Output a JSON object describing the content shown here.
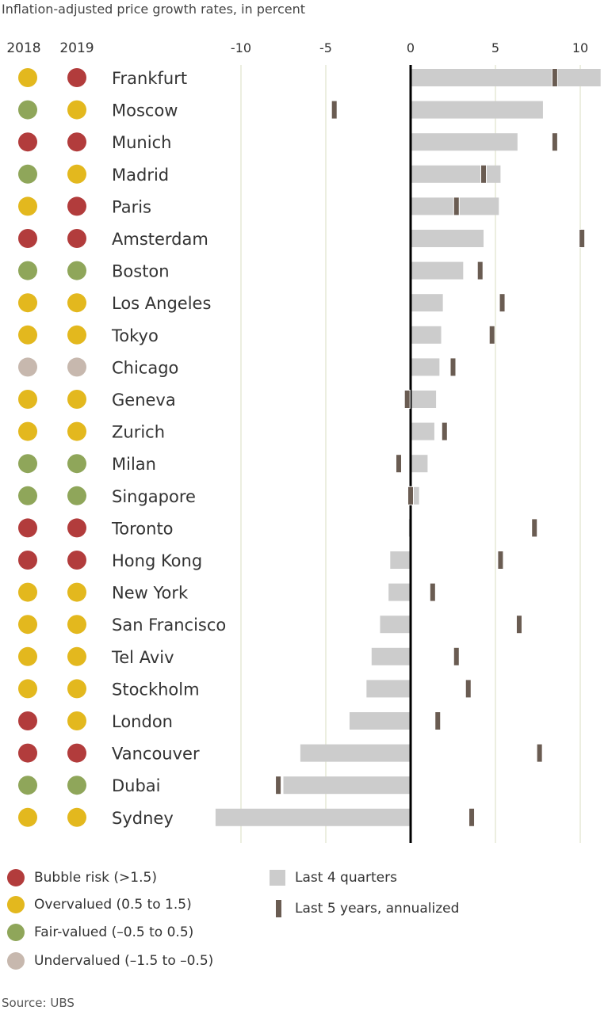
{
  "chart_data": {
    "type": "bar",
    "title": "Inflation-adjusted price growth rates, in percent",
    "year_headers": [
      "2018",
      "2019"
    ],
    "x_ticks": [
      -10,
      -5,
      0,
      5,
      10
    ],
    "xlim": [
      -12,
      11.5
    ],
    "categories": [
      "Frankfurt",
      "Moscow",
      "Munich",
      "Madrid",
      "Paris",
      "Amsterdam",
      "Boston",
      "Los Angeles",
      "Tokyo",
      "Chicago",
      "Geneva",
      "Zurich",
      "Milan",
      "Singapore",
      "Toronto",
      "Hong Kong",
      "New York",
      "San Francisco",
      "Tel Aviv",
      "Stockholm",
      "London",
      "Vancouver",
      "Dubai",
      "Sydney"
    ],
    "rating_2018": [
      "overvalued",
      "fair",
      "bubble",
      "fair",
      "overvalued",
      "bubble",
      "fair",
      "overvalued",
      "overvalued",
      "undervalued",
      "overvalued",
      "overvalued",
      "fair",
      "fair",
      "bubble",
      "bubble",
      "overvalued",
      "overvalued",
      "overvalued",
      "overvalued",
      "bubble",
      "bubble",
      "fair",
      "overvalued"
    ],
    "rating_2019": [
      "bubble",
      "overvalued",
      "bubble",
      "overvalued",
      "bubble",
      "bubble",
      "fair",
      "overvalued",
      "overvalued",
      "undervalued",
      "overvalued",
      "overvalued",
      "fair",
      "fair",
      "bubble",
      "bubble",
      "overvalued",
      "overvalued",
      "overvalued",
      "overvalued",
      "overvalued",
      "bubble",
      "fair",
      "overvalued"
    ],
    "series": [
      {
        "name": "Last 4 quarters",
        "values": [
          11.2,
          7.8,
          6.3,
          5.3,
          5.2,
          4.3,
          3.1,
          1.9,
          1.8,
          1.7,
          1.5,
          1.4,
          1.0,
          0.5,
          -0.1,
          -1.2,
          -1.3,
          -1.8,
          -2.3,
          -2.6,
          -3.6,
          -6.5,
          -7.5,
          -11.5
        ]
      },
      {
        "name": "Last 5 years, annualized",
        "values": [
          8.5,
          -4.5,
          8.5,
          4.3,
          2.7,
          10.1,
          4.1,
          5.4,
          4.8,
          2.5,
          -0.2,
          2.0,
          -0.7,
          0.0,
          7.3,
          5.3,
          1.3,
          6.4,
          2.7,
          3.4,
          1.6,
          7.6,
          -7.8,
          3.6
        ]
      }
    ],
    "legend": {
      "ratings": [
        {
          "key": "bubble",
          "label": "Bubble risk (>1.5)"
        },
        {
          "key": "overvalued",
          "label": "Overvalued (0.5 to 1.5)"
        },
        {
          "key": "fair",
          "label": "Fair-valued (–0.5 to 0.5)"
        },
        {
          "key": "undervalued",
          "label": "Undervalued (–1.5 to –0.5)"
        }
      ]
    },
    "source": "Source: UBS"
  },
  "colors": {
    "bubble": "#b23c3c",
    "overvalued": "#e3b81e",
    "fair": "#8fa65a",
    "undervalued": "#c7b8ae",
    "bar": "#cccccc",
    "mark": "#6a5c52",
    "grid": "#d8dcc0",
    "zero_axis": "#000000"
  }
}
